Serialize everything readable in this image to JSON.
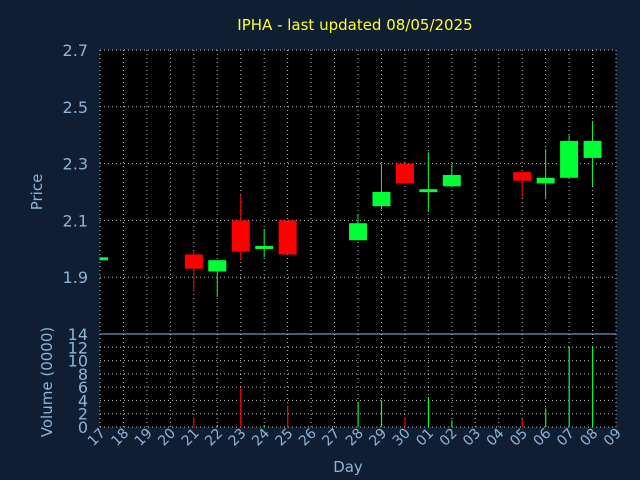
{
  "chart_data": {
    "type": "candlestick",
    "title": "IPHA - last updated 08/05/2025",
    "xlabel": "Day",
    "ylabel": "Price",
    "ylabel2": "Volume (0000)",
    "price_ticks": [
      "2.7",
      "2.5",
      "2.3",
      "2.1",
      "1.9"
    ],
    "price_range": [
      1.7,
      2.7
    ],
    "volume_ticks": [
      "14",
      "12",
      "10",
      "8",
      "6",
      "4",
      "2",
      "0"
    ],
    "volume_range": [
      0,
      14
    ],
    "grid": true,
    "days": [
      "17",
      "18",
      "19",
      "20",
      "21",
      "22",
      "23",
      "24",
      "25",
      "26",
      "27",
      "28",
      "29",
      "30",
      "01",
      "02",
      "03",
      "04",
      "05",
      "06",
      "07",
      "08",
      "09"
    ],
    "candles": [
      {
        "day": "17",
        "open": 1.96,
        "close": 1.97,
        "high": 1.97,
        "low": 1.96,
        "volume": 0.0
      },
      {
        "day": "21",
        "open": 1.98,
        "close": 1.93,
        "high": 1.99,
        "low": 1.85,
        "volume": 1.3
      },
      {
        "day": "22",
        "open": 1.92,
        "close": 1.96,
        "high": 1.96,
        "low": 1.83,
        "volume": 0.3
      },
      {
        "day": "23",
        "open": 2.1,
        "close": 1.99,
        "high": 2.19,
        "low": 1.96,
        "volume": 6.0
      },
      {
        "day": "24",
        "open": 2.0,
        "close": 2.01,
        "high": 2.07,
        "low": 1.97,
        "volume": 0.3
      },
      {
        "day": "25",
        "open": 2.1,
        "close": 1.98,
        "high": 2.1,
        "low": 1.98,
        "volume": 3.2
      },
      {
        "day": "28",
        "open": 2.03,
        "close": 2.09,
        "high": 2.12,
        "low": 2.03,
        "volume": 3.8
      },
      {
        "day": "29",
        "open": 2.15,
        "close": 2.2,
        "high": 2.3,
        "low": 2.14,
        "volume": 4.0
      },
      {
        "day": "30",
        "open": 2.3,
        "close": 2.23,
        "high": 2.3,
        "low": 2.23,
        "volume": 1.5
      },
      {
        "day": "01",
        "open": 2.21,
        "close": 2.21,
        "high": 2.34,
        "low": 2.13,
        "volume": 4.5
      },
      {
        "day": "02",
        "open": 2.22,
        "close": 2.26,
        "high": 2.3,
        "low": 2.22,
        "volume": 1.0
      },
      {
        "day": "05",
        "open": 2.27,
        "close": 2.24,
        "high": 2.27,
        "low": 2.18,
        "volume": 1.2
      },
      {
        "day": "06",
        "open": 2.23,
        "close": 2.25,
        "high": 2.35,
        "low": 2.18,
        "volume": 2.8
      },
      {
        "day": "07",
        "open": 2.25,
        "close": 2.38,
        "high": 2.4,
        "low": 2.25,
        "volume": 12.2
      },
      {
        "day": "08",
        "open": 2.32,
        "close": 2.38,
        "high": 2.45,
        "low": 2.22,
        "volume": 12.2
      }
    ],
    "colors": {
      "up": "#00ff33",
      "down": "#ff0000",
      "grid": "#ffffff",
      "text": "#8fb4d6",
      "title": "#ffff33",
      "background": "#0f1e33",
      "plot": "#000000"
    }
  }
}
